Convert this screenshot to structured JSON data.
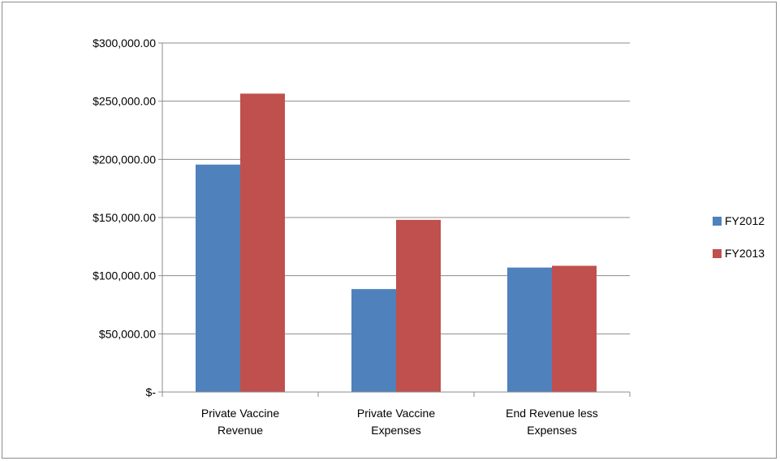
{
  "chart_data": {
    "type": "bar",
    "categories": [
      [
        "Private Vaccine",
        "Revenue"
      ],
      [
        "Private Vaccine",
        "Expenses"
      ],
      [
        "End Revenue less",
        "Expenses"
      ]
    ],
    "series": [
      {
        "name": "FY2012",
        "color": "#4f81bd",
        "values": [
          195500,
          88500,
          107000
        ]
      },
      {
        "name": "FY2013",
        "color": "#c0504d",
        "values": [
          256500,
          148000,
          108500
        ]
      }
    ],
    "ylim": [
      0,
      300000
    ],
    "yticks": [
      0,
      50000,
      100000,
      150000,
      200000,
      250000,
      300000
    ],
    "ytick_labels": [
      "$-",
      "$50,000.00",
      "$100,000.00",
      "$150,000.00",
      "$200,000.00",
      "$250,000.00",
      "$300,000.00"
    ],
    "grid": true,
    "legend_position": "right"
  }
}
